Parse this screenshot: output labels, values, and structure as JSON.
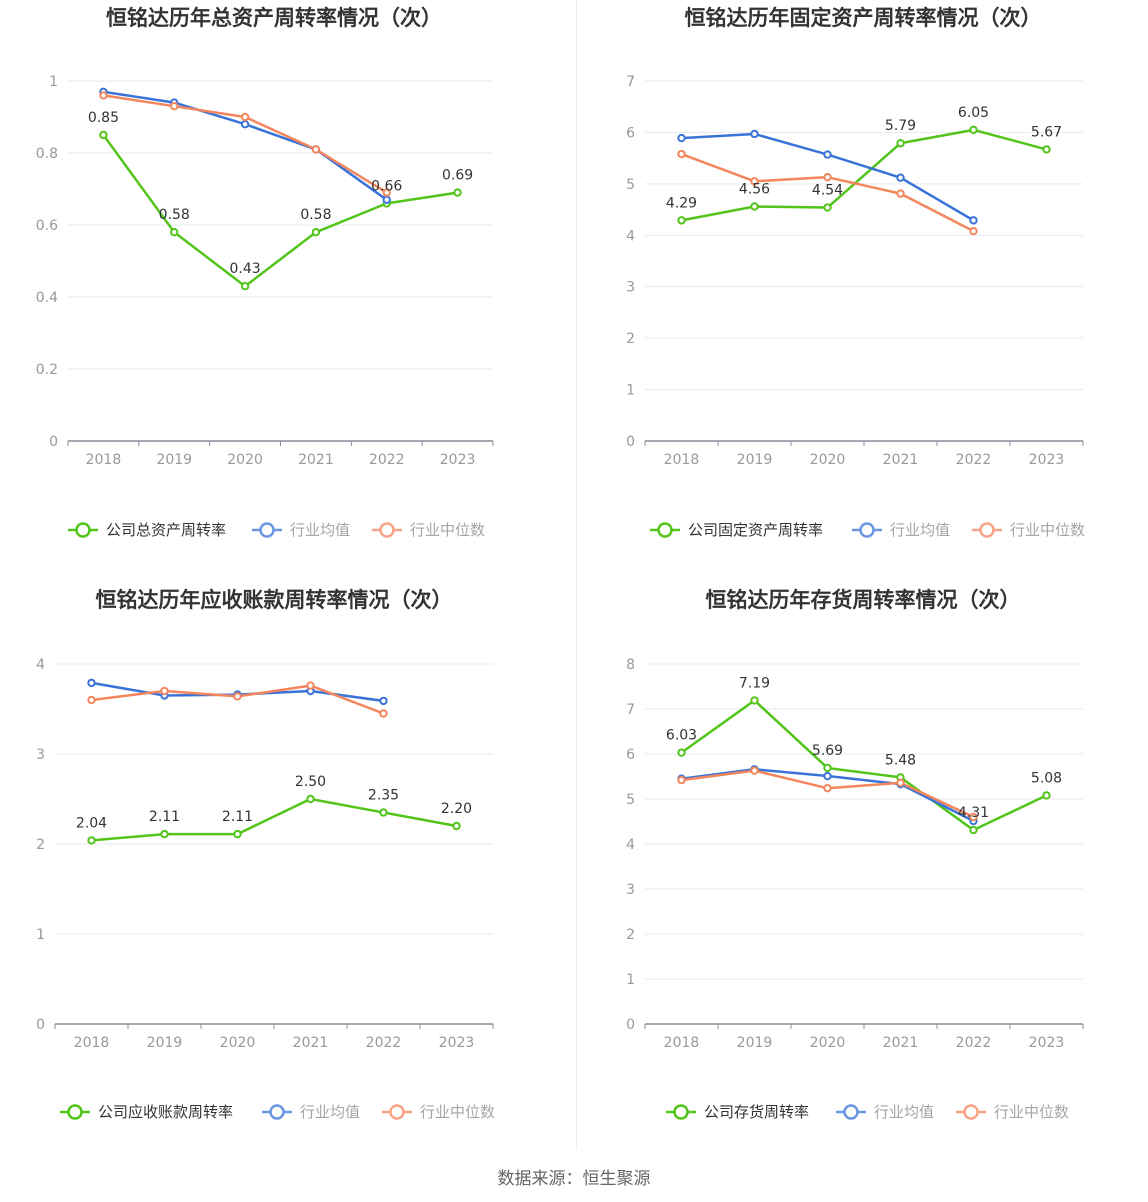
{
  "source_label": "数据来源：恒生聚源",
  "colors": {
    "company": "#52c41a",
    "avg": "#3a73d8",
    "median": "#f4865d",
    "grid": "#e6e9f0",
    "axis": "#8c8c99"
  },
  "chart_data": [
    {
      "type": "line",
      "title": "恒铭达历年总资产周转率情况（次）",
      "x": [
        "2018",
        "2019",
        "2020",
        "2021",
        "2022",
        "2023"
      ],
      "ylim": [
        0,
        1
      ],
      "yticks": [
        "0",
        "0.2",
        "0.4",
        "0.6",
        "0.8",
        "1"
      ],
      "ytick_values": [
        0,
        0.2,
        0.4,
        0.6,
        0.8,
        1
      ],
      "series": [
        {
          "name": "公司总资产周转率",
          "values": [
            0.85,
            0.58,
            0.43,
            0.58,
            0.66,
            0.69
          ],
          "labels": [
            "0.85",
            "0.58",
            "0.43",
            "0.58",
            "0.66",
            "0.69"
          ]
        },
        {
          "name": "行业均值",
          "values": [
            0.97,
            0.94,
            0.88,
            0.81,
            0.67,
            null
          ]
        },
        {
          "name": "行业中位数",
          "values": [
            0.96,
            0.93,
            0.9,
            0.81,
            0.69,
            null
          ]
        }
      ],
      "legend": "bottom",
      "grid": true
    },
    {
      "type": "line",
      "title": "恒铭达历年固定资产周转率情况（次）",
      "x": [
        "2018",
        "2019",
        "2020",
        "2021",
        "2022",
        "2023"
      ],
      "ylim": [
        0,
        7
      ],
      "yticks": [
        "0",
        "1",
        "2",
        "3",
        "4",
        "5",
        "6",
        "7"
      ],
      "ytick_values": [
        0,
        1,
        2,
        3,
        4,
        5,
        6,
        7
      ],
      "series": [
        {
          "name": "公司固定资产周转率",
          "values": [
            4.29,
            4.56,
            4.54,
            5.79,
            6.05,
            5.67
          ],
          "labels": [
            "4.29",
            "4.56",
            "4.54",
            "5.79",
            "6.05",
            "5.67"
          ]
        },
        {
          "name": "行业均值",
          "values": [
            5.89,
            5.97,
            5.57,
            5.12,
            4.29,
            null
          ]
        },
        {
          "name": "行业中位数",
          "values": [
            5.58,
            5.05,
            5.13,
            4.81,
            4.08,
            null
          ]
        }
      ],
      "legend": "bottom",
      "grid": true
    },
    {
      "type": "line",
      "title": "恒铭达历年应收账款周转率情况（次）",
      "x": [
        "2018",
        "2019",
        "2020",
        "2021",
        "2022",
        "2023"
      ],
      "ylim": [
        0,
        4
      ],
      "yticks": [
        "0",
        "1",
        "2",
        "3",
        "4"
      ],
      "ytick_values": [
        0,
        1,
        2,
        3,
        4
      ],
      "series": [
        {
          "name": "公司应收账款周转率",
          "values": [
            2.04,
            2.11,
            2.11,
            2.5,
            2.35,
            2.2
          ],
          "labels": [
            "2.04",
            "2.11",
            "2.11",
            "2.50",
            "2.35",
            "2.20"
          ]
        },
        {
          "name": "行业均值",
          "values": [
            3.79,
            3.65,
            3.66,
            3.7,
            3.59,
            null
          ]
        },
        {
          "name": "行业中位数",
          "values": [
            3.6,
            3.7,
            3.64,
            3.76,
            3.45,
            null
          ]
        }
      ],
      "legend": "bottom",
      "grid": true
    },
    {
      "type": "line",
      "title": "恒铭达历年存货周转率情况（次）",
      "x": [
        "2018",
        "2019",
        "2020",
        "2021",
        "2022",
        "2023"
      ],
      "ylim": [
        0,
        8
      ],
      "yticks": [
        "0",
        "1",
        "2",
        "3",
        "4",
        "5",
        "6",
        "7",
        "8"
      ],
      "ytick_values": [
        0,
        1,
        2,
        3,
        4,
        5,
        6,
        7,
        8
      ],
      "series": [
        {
          "name": "公司存货周转率",
          "values": [
            6.03,
            7.19,
            5.69,
            5.48,
            4.31,
            5.08
          ],
          "labels": [
            "6.03",
            "7.19",
            "5.69",
            "5.48",
            "4.31",
            "5.08"
          ]
        },
        {
          "name": "行业均值",
          "values": [
            5.45,
            5.66,
            5.51,
            5.33,
            4.51,
            null
          ]
        },
        {
          "name": "行业中位数",
          "values": [
            5.42,
            5.63,
            5.24,
            5.36,
            4.6,
            null
          ]
        }
      ],
      "legend": "bottom",
      "grid": true
    }
  ]
}
